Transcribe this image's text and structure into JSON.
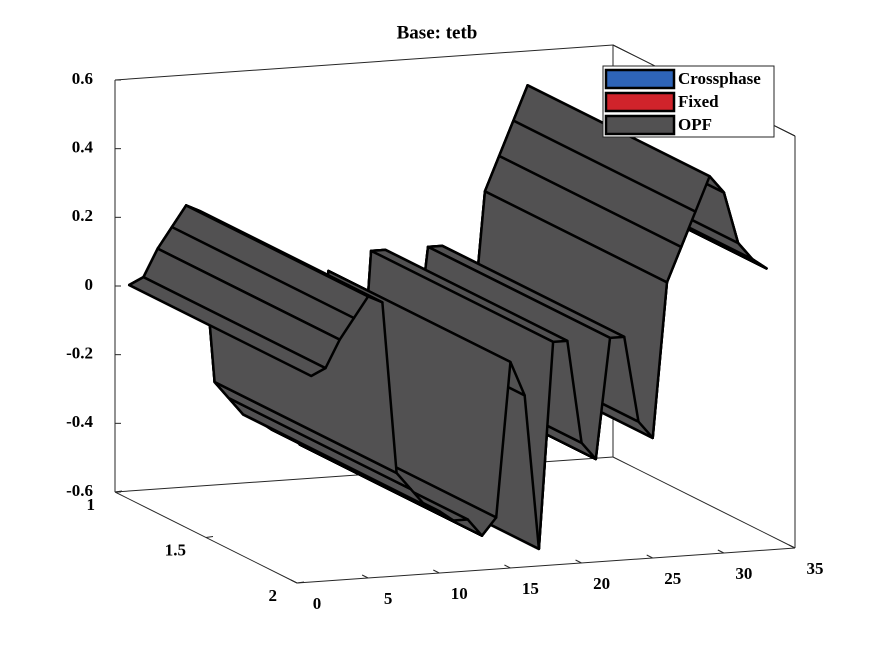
{
  "chart_data": {
    "type": "surface3d",
    "title": "Base: tetb",
    "x": [
      1,
      2,
      3,
      4,
      5,
      6,
      7,
      8,
      9,
      10,
      11,
      12,
      13,
      14,
      15,
      16,
      17,
      18,
      19,
      20,
      21,
      22,
      23,
      24,
      25,
      26,
      27,
      28,
      29,
      30,
      31,
      32,
      33
    ],
    "ylim": [
      1,
      2
    ],
    "yticks": [
      1,
      1.5,
      2
    ],
    "xlim": [
      0,
      35
    ],
    "xticks": [
      0,
      5,
      10,
      15,
      20,
      25,
      30,
      35
    ],
    "zlim": [
      -0.6,
      0.6
    ],
    "zticks": [
      -0.6,
      -0.4,
      -0.2,
      0,
      0.2,
      0.4,
      0.6
    ],
    "legend": "upper right",
    "series": [
      {
        "name": "Crossphase",
        "color": "#2e64b8",
        "values": [
          0,
          0.02,
          0.1,
          0.16,
          0.22,
          0.2,
          -0.3,
          -0.35,
          -0.4,
          -0.42,
          -0.45,
          -0.45,
          -0.5,
          -0.45,
          0,
          -0.1,
          -0.55,
          0.05,
          0.05,
          -0.25,
          -0.3,
          0.05,
          0.05,
          -0.2,
          -0.25,
          0.2,
          0.3,
          0.4,
          0.5,
          0.45,
          0.3,
          0.25,
          0.22
        ]
      },
      {
        "name": "Fixed",
        "color": "#d0232b",
        "values": [
          0,
          0.02,
          0.1,
          0.16,
          0.22,
          0.2,
          -0.3,
          -0.35,
          -0.4,
          -0.42,
          -0.45,
          -0.45,
          -0.5,
          -0.45,
          0,
          -0.1,
          -0.55,
          0.05,
          0.05,
          -0.25,
          -0.3,
          0.05,
          0.05,
          -0.2,
          -0.25,
          0.2,
          0.3,
          0.4,
          0.5,
          0.45,
          0.3,
          0.25,
          0.22
        ]
      },
      {
        "name": "OPF",
        "color": "#525152",
        "values": [
          0,
          0.02,
          0.1,
          0.16,
          0.22,
          0.2,
          -0.3,
          -0.35,
          -0.4,
          -0.42,
          -0.45,
          -0.45,
          -0.5,
          -0.45,
          0,
          -0.1,
          -0.55,
          0.05,
          0.05,
          -0.25,
          -0.3,
          0.05,
          0.05,
          -0.2,
          -0.25,
          0.2,
          0.3,
          0.4,
          0.5,
          0.45,
          0.3,
          0.25,
          0.22
        ]
      }
    ]
  }
}
